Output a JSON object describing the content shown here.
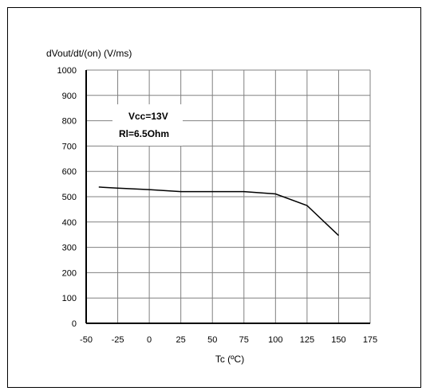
{
  "chart_data": {
    "type": "line",
    "title": "",
    "ylabel": "dVout/dt/(on) (V/ms)",
    "xlabel": "Tc (ºC)",
    "xlim": [
      -50,
      175
    ],
    "ylim": [
      0,
      1000
    ],
    "x_ticks": [
      "-50",
      "-25",
      "0",
      "25",
      "50",
      "75",
      "100",
      "125",
      "150",
      "175"
    ],
    "y_ticks": [
      "0",
      "100",
      "200",
      "300",
      "400",
      "500",
      "600",
      "700",
      "800",
      "900",
      "1000"
    ],
    "grid": true,
    "annotations": [
      "Vcc=13V",
      "Rl=6.5Ohm"
    ],
    "series": [
      {
        "x": [
          -40,
          -25,
          0,
          25,
          50,
          75,
          100,
          125,
          150
        ],
        "y": [
          538,
          534,
          528,
          520,
          520,
          520,
          511,
          465,
          347
        ]
      }
    ],
    "colors": {
      "line": "#000000",
      "grid": "#808080",
      "axis": "#000000"
    }
  }
}
